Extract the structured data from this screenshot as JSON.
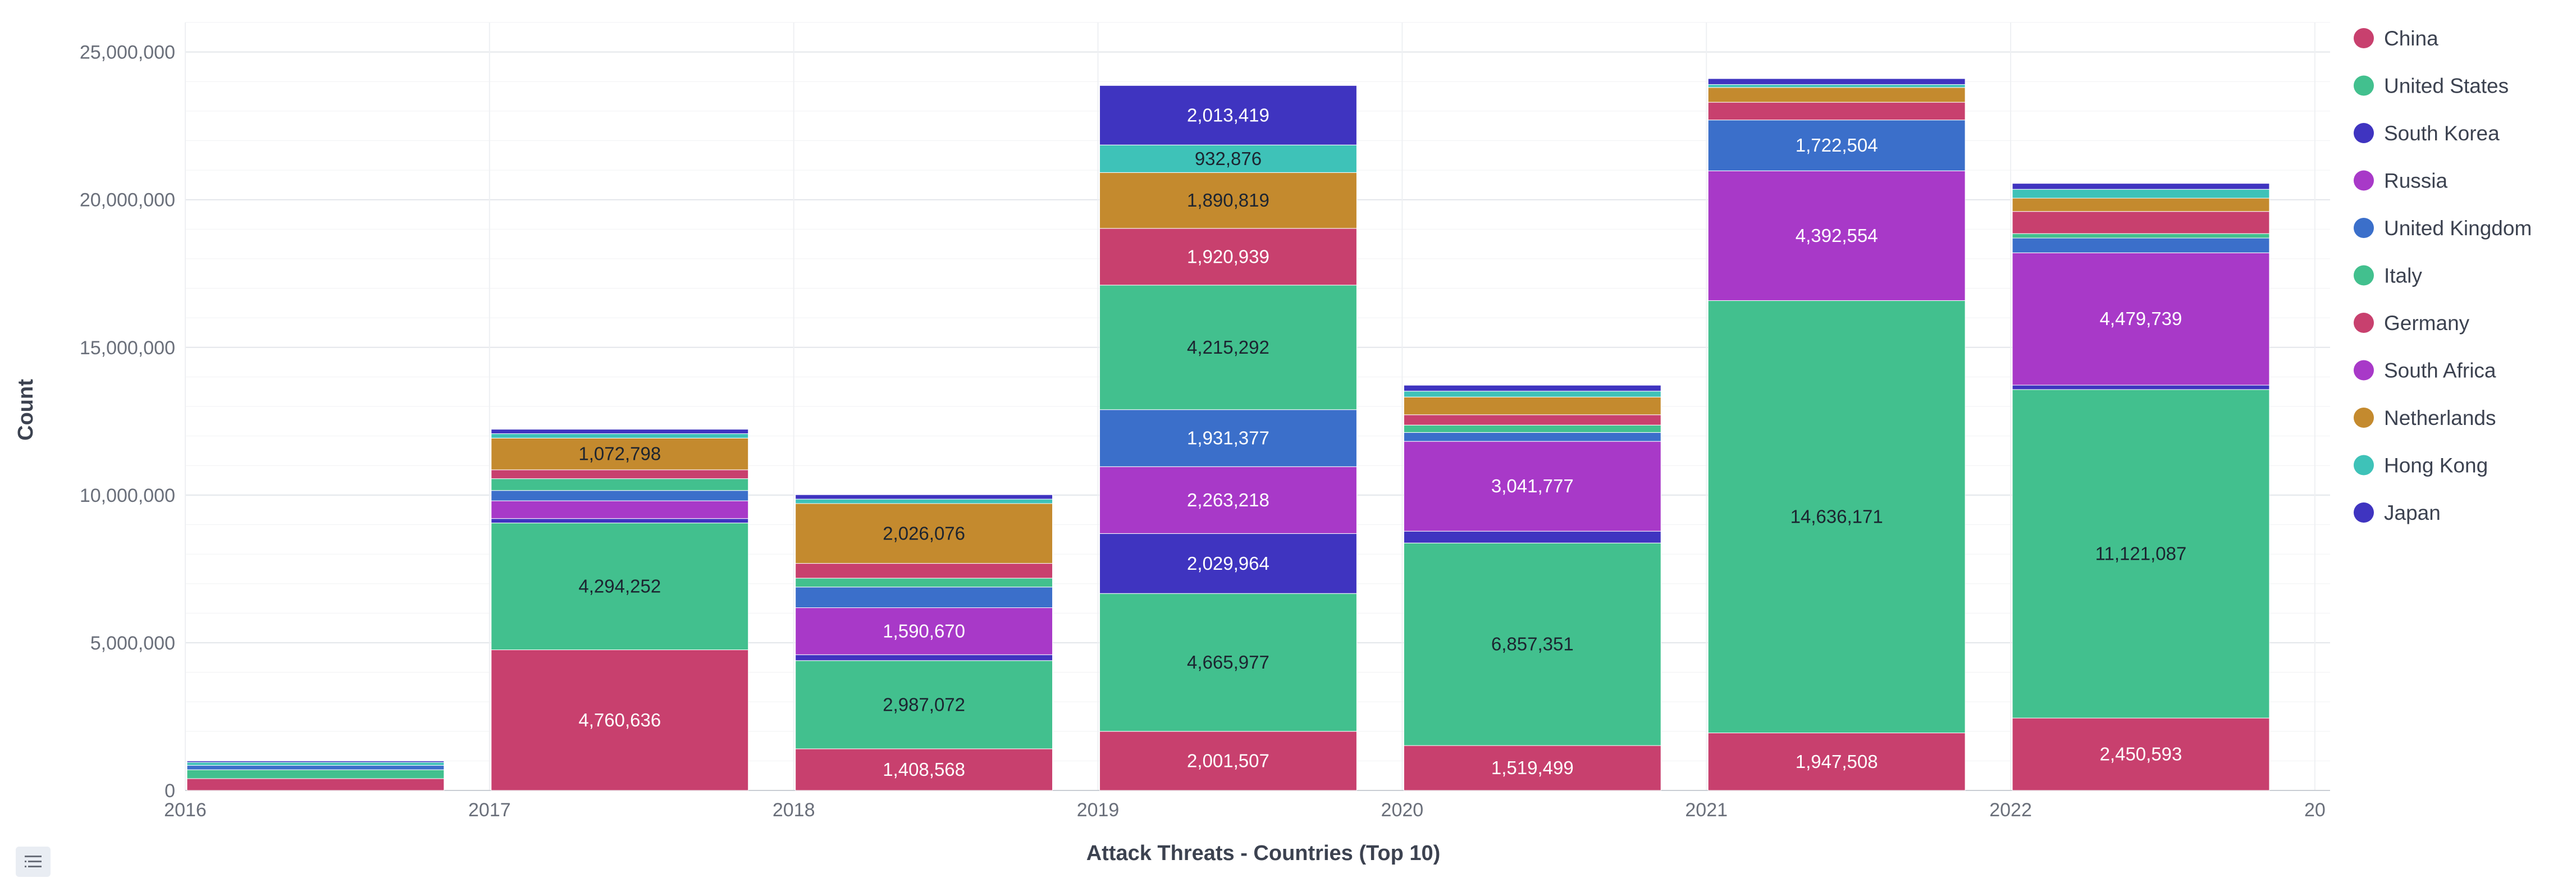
{
  "chart_data": {
    "type": "bar",
    "stacked": true,
    "xlabel": "Attack Threats - Countries (Top 10)",
    "ylabel": "Count",
    "ylim": [
      0,
      26000000
    ],
    "yticks": [
      0,
      5000000,
      10000000,
      15000000,
      20000000,
      25000000
    ],
    "ytick_labels": [
      "0",
      "5,000,000",
      "10,000,000",
      "15,000,000",
      "20,000,000",
      "25,000,000"
    ],
    "categories": [
      "2016",
      "2017",
      "2018",
      "2019",
      "2020",
      "2021",
      "2022"
    ],
    "edge_tick_label": "20",
    "grid": true,
    "legend_position": "right",
    "series": [
      {
        "name": "China",
        "color": "#c8406e",
        "values": [
          400000,
          4760636,
          1408568,
          2001507,
          1519499,
          1947508,
          2450593
        ]
      },
      {
        "name": "United States",
        "color": "#42c08e",
        "values": [
          300000,
          4294252,
          2987072,
          4665977,
          6857351,
          14636171,
          11121087
        ]
      },
      {
        "name": "South Korea",
        "color": "#3f34c0",
        "values": [
          0,
          150000,
          200000,
          2029964,
          400000,
          0,
          150000
        ]
      },
      {
        "name": "Russia",
        "color": "#a839c8",
        "values": [
          0,
          600000,
          1590670,
          2263218,
          3041777,
          4392554,
          4479739
        ]
      },
      {
        "name": "United Kingdom",
        "color": "#3b6fca",
        "values": [
          150000,
          350000,
          700000,
          1931377,
          300000,
          1722504,
          500000
        ]
      },
      {
        "name": "Italy",
        "color": "#42c08e",
        "values": [
          0,
          400000,
          300000,
          4215292,
          250000,
          0,
          150000
        ]
      },
      {
        "name": "Germany",
        "color": "#c8406e",
        "values": [
          0,
          300000,
          500000,
          1920939,
          350000,
          600000,
          750000
        ]
      },
      {
        "name": "South Africa",
        "color": "#a839c8",
        "values": [
          0,
          0,
          0,
          0,
          0,
          0,
          0
        ]
      },
      {
        "name": "Netherlands",
        "color": "#c48a2e",
        "values": [
          0,
          1072798,
          2026076,
          1890819,
          600000,
          500000,
          450000
        ]
      },
      {
        "name": "Hong Kong",
        "color": "#3ec2b8",
        "values": [
          100000,
          150000,
          150000,
          932876,
          200000,
          100000,
          300000
        ]
      },
      {
        "name": "Japan",
        "color": "#3f34c0",
        "values": [
          50000,
          150000,
          150000,
          2013419,
          200000,
          200000,
          200000
        ]
      }
    ],
    "data_labels": [
      [
        "",
        "",
        "",
        "",
        "",
        "",
        "",
        "",
        "",
        "",
        ""
      ],
      [
        "4,760,636",
        "4,294,252",
        "",
        "",
        "",
        "",
        "",
        "",
        "1,072,798",
        "",
        ""
      ],
      [
        "1,408,568",
        "2,987,072",
        "",
        "1,590,670",
        "",
        "",
        "",
        "",
        "2,026,076",
        "",
        ""
      ],
      [
        "2,001,507",
        "4,665,977",
        "2,029,964",
        "2,263,218",
        "1,931,377",
        "4,215,292",
        "1,920,939",
        "",
        "1,890,819",
        "932,876",
        "2,013,419"
      ],
      [
        "1,519,499",
        "6,857,351",
        "",
        "3,041,777",
        "",
        "",
        "",
        "",
        "",
        "",
        ""
      ],
      [
        "1,947,508",
        "14,636,171",
        "",
        "4,392,554",
        "1,722,504",
        "",
        "",
        "",
        "",
        "",
        ""
      ],
      [
        "2,450,593",
        "11,121,087",
        "",
        "4,479,739",
        "",
        "",
        "",
        "",
        "",
        "",
        ""
      ]
    ]
  }
}
